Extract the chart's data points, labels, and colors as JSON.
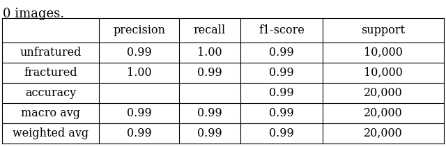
{
  "title_text": "0 images.",
  "col_headers": [
    "",
    "precision",
    "recall",
    "f1-score",
    "support"
  ],
  "rows": [
    [
      "unfratured",
      "0.99",
      "1.00",
      "0.99",
      "10,000"
    ],
    [
      "fractured",
      "1.00",
      "0.99",
      "0.99",
      "10,000"
    ],
    [
      "accuracy",
      "",
      "",
      "0.99",
      "20,000"
    ],
    [
      "macro avg",
      "0.99",
      "0.99",
      "0.99",
      "20,000"
    ],
    [
      "weighted avg",
      "0.99",
      "0.99",
      "0.99",
      "20,000"
    ]
  ],
  "background": "#ffffff",
  "text_color": "#000000",
  "line_color": "#000000",
  "font_size": 11.5,
  "header_font_size": 11.5,
  "title_font_size": 13
}
